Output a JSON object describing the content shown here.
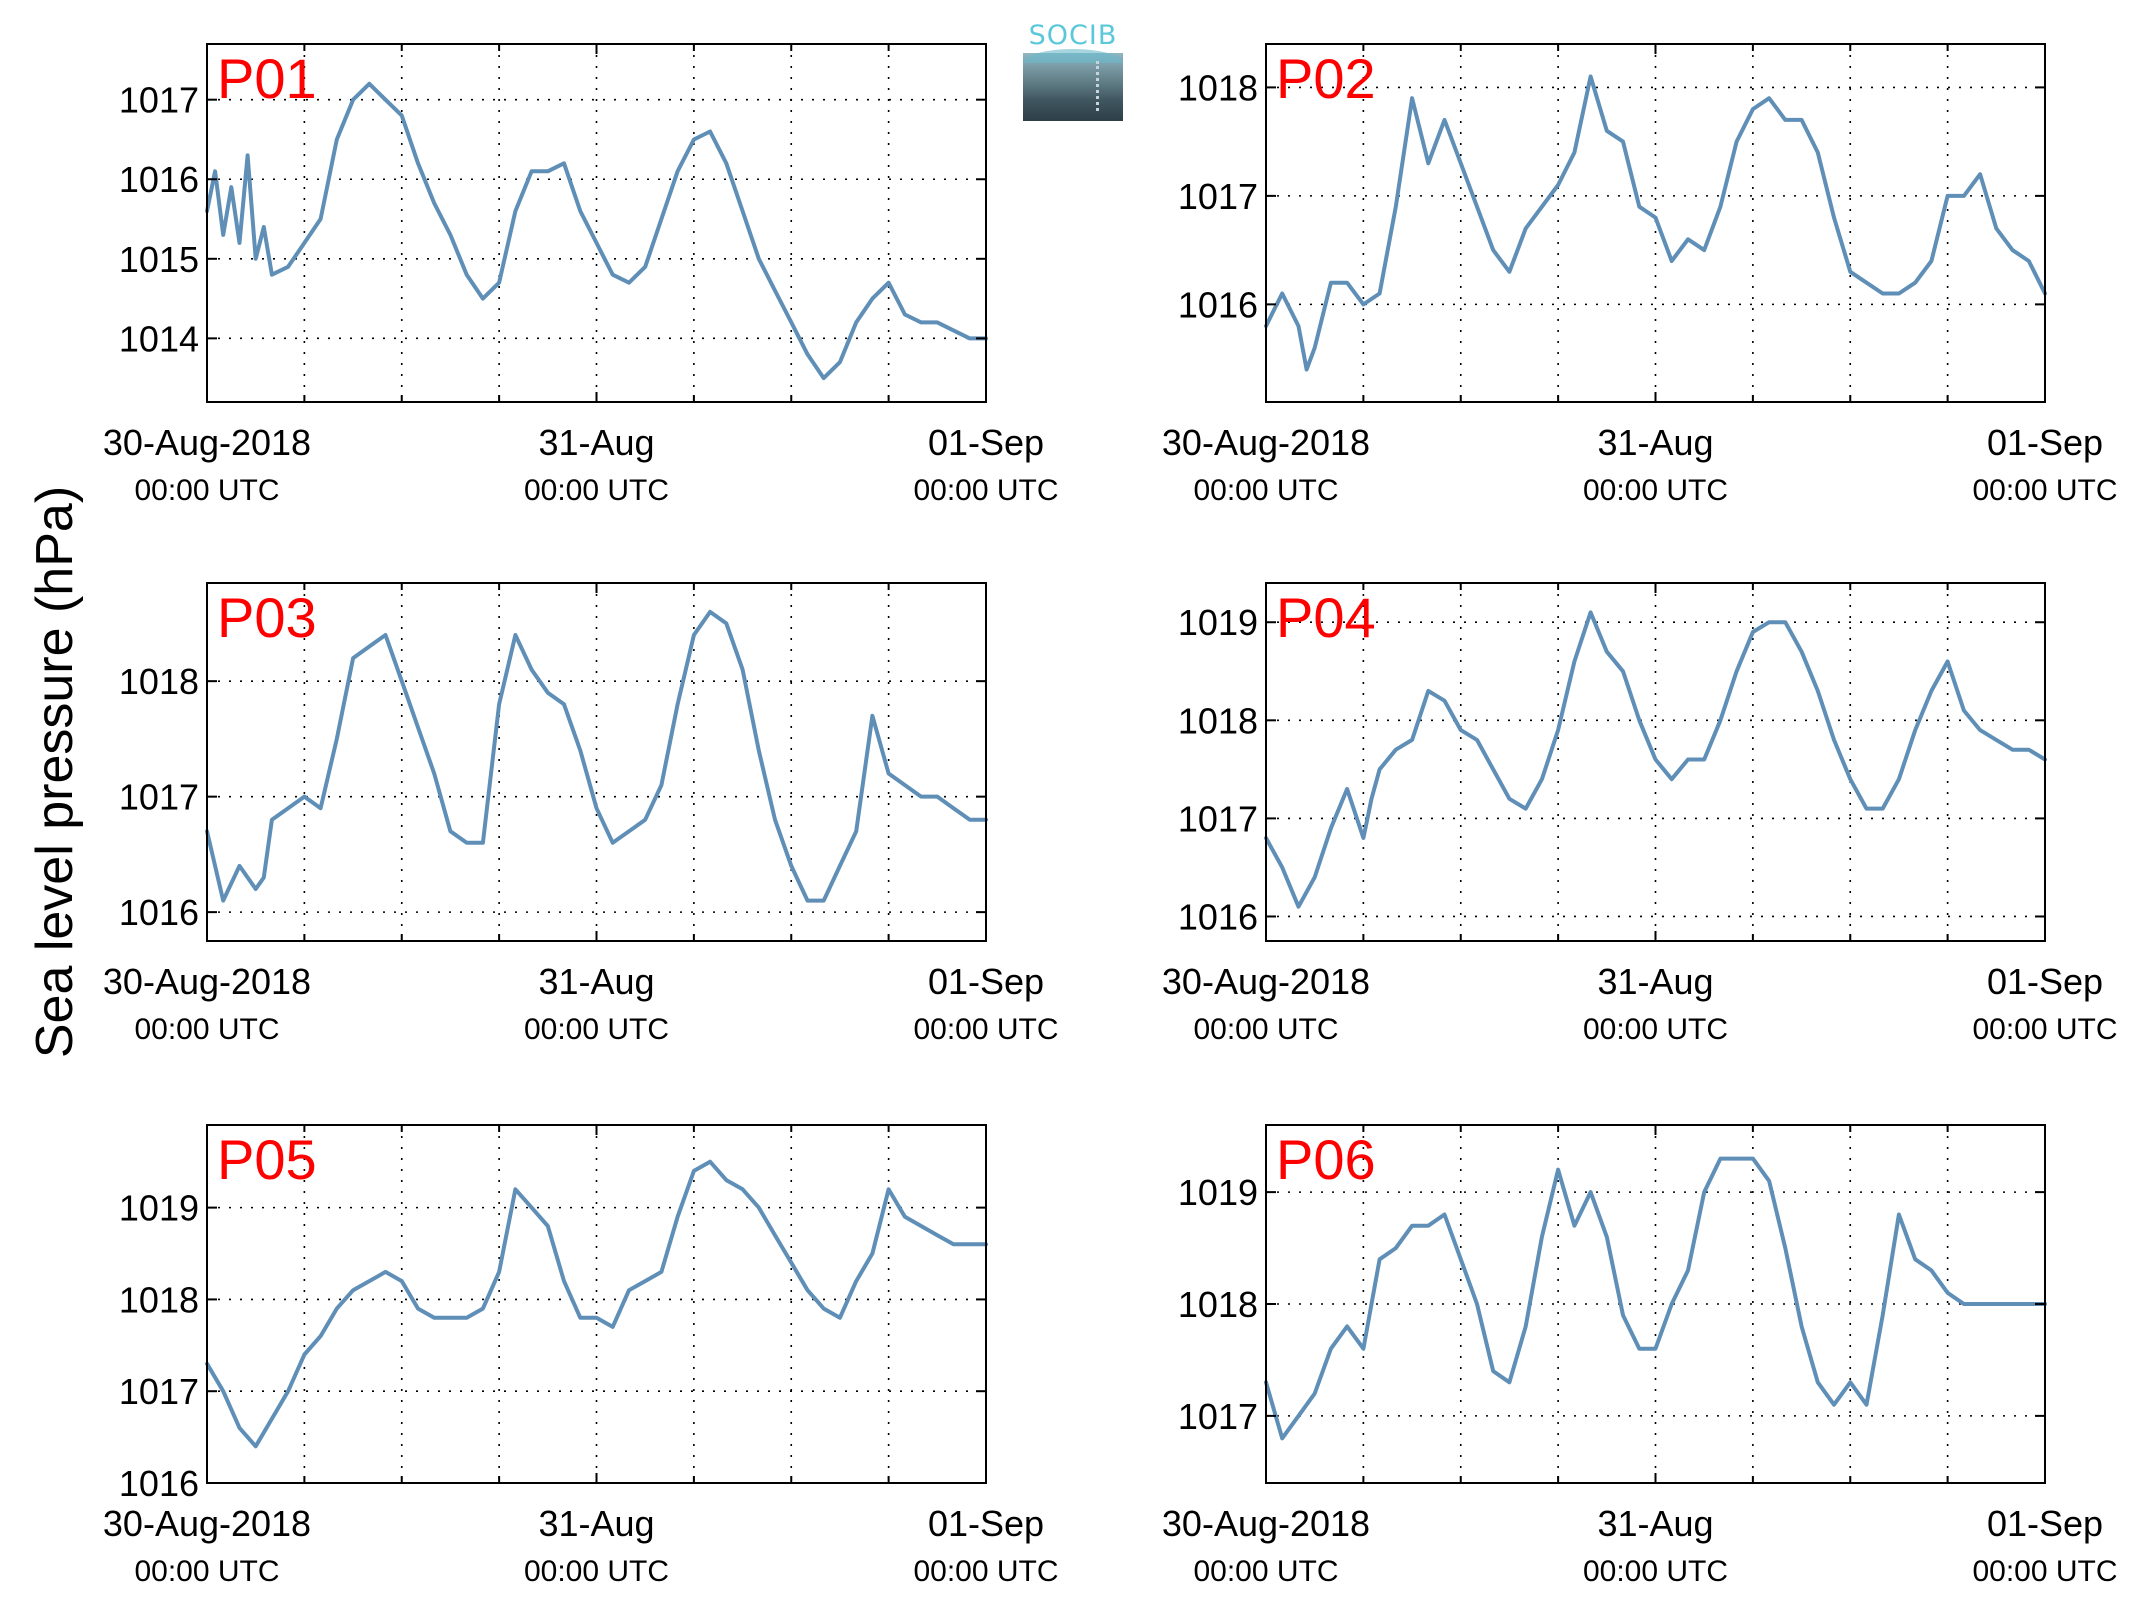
{
  "figure": {
    "ylabel": "Sea level pressure (hPa)",
    "logo_text": "SOCIB"
  },
  "colors": {
    "line": "#5f8fb7",
    "panel_label": "#ff0000",
    "logo_text": "#5bc8da"
  },
  "chart_data": [
    {
      "type": "line",
      "label": "P01",
      "xticks": [
        {
          "line1": "30-Aug-2018",
          "line2": "00:00 UTC"
        },
        {
          "line1": "31-Aug",
          "line2": "00:00 UTC"
        },
        {
          "line1": "01-Sep",
          "line2": "00:00 UTC"
        }
      ],
      "xlim_hours": [
        0,
        48
      ],
      "ylim": [
        1013.2,
        1017.7
      ],
      "yticks": [
        1014,
        1015,
        1016,
        1017
      ],
      "grid": true,
      "x_hours": [
        0,
        0.5,
        1,
        1.5,
        2,
        2.5,
        3,
        3.5,
        4,
        5,
        6,
        7,
        8,
        9,
        10,
        11,
        12,
        13,
        14,
        15,
        16,
        17,
        18,
        19,
        20,
        21,
        22,
        23,
        24,
        25,
        26,
        27,
        28,
        29,
        30,
        31,
        32,
        33,
        34,
        35,
        36,
        37,
        38,
        39,
        40,
        41,
        42,
        43,
        44,
        45,
        46,
        47,
        48
      ],
      "values": [
        1015.6,
        1016.1,
        1015.3,
        1015.9,
        1015.2,
        1016.3,
        1015.0,
        1015.4,
        1014.8,
        1014.9,
        1015.2,
        1015.5,
        1016.5,
        1017.0,
        1017.2,
        1017.0,
        1016.8,
        1016.2,
        1015.7,
        1015.3,
        1014.8,
        1014.5,
        1014.7,
        1015.6,
        1016.1,
        1016.1,
        1016.2,
        1015.6,
        1015.2,
        1014.8,
        1014.7,
        1014.9,
        1015.5,
        1016.1,
        1016.5,
        1016.6,
        1016.2,
        1015.6,
        1015.0,
        1014.6,
        1014.2,
        1013.8,
        1013.5,
        1013.7,
        1014.2,
        1014.5,
        1014.7,
        1014.3,
        1014.2,
        1014.2,
        1014.1,
        1014.0,
        1014.0
      ]
    },
    {
      "type": "line",
      "label": "P02",
      "xticks": [
        {
          "line1": "30-Aug-2018",
          "line2": "00:00 UTC"
        },
        {
          "line1": "31-Aug",
          "line2": "00:00 UTC"
        },
        {
          "line1": "01-Sep",
          "line2": "00:00 UTC"
        }
      ],
      "xlim_hours": [
        0,
        48
      ],
      "ylim": [
        1015.1,
        1018.4
      ],
      "yticks": [
        1016,
        1017,
        1018
      ],
      "grid": true,
      "x_hours": [
        0,
        1,
        2,
        2.5,
        3,
        4,
        5,
        6,
        7,
        8,
        9,
        10,
        11,
        12,
        13,
        14,
        15,
        16,
        17,
        18,
        19,
        20,
        21,
        22,
        23,
        24,
        25,
        26,
        27,
        28,
        29,
        30,
        31,
        32,
        33,
        34,
        35,
        36,
        37,
        38,
        39,
        40,
        41,
        42,
        43,
        44,
        45,
        46,
        47,
        48
      ],
      "values": [
        1015.8,
        1016.1,
        1015.8,
        1015.4,
        1015.6,
        1016.2,
        1016.2,
        1016.0,
        1016.1,
        1016.9,
        1017.9,
        1017.3,
        1017.7,
        1017.3,
        1016.9,
        1016.5,
        1016.3,
        1016.7,
        1016.9,
        1017.1,
        1017.4,
        1018.1,
        1017.6,
        1017.5,
        1016.9,
        1016.8,
        1016.4,
        1016.6,
        1016.5,
        1016.9,
        1017.5,
        1017.8,
        1017.9,
        1017.7,
        1017.7,
        1017.4,
        1016.8,
        1016.3,
        1016.2,
        1016.1,
        1016.1,
        1016.2,
        1016.4,
        1017.0,
        1017.0,
        1017.2,
        1016.7,
        1016.5,
        1016.4,
        1016.1
      ]
    },
    {
      "type": "line",
      "label": "P03",
      "xticks": [
        {
          "line1": "30-Aug-2018",
          "line2": "00:00 UTC"
        },
        {
          "line1": "31-Aug",
          "line2": "00:00 UTC"
        },
        {
          "line1": "01-Sep",
          "line2": "00:00 UTC"
        }
      ],
      "xlim_hours": [
        0,
        48
      ],
      "ylim": [
        1015.75,
        1018.85
      ],
      "yticks": [
        1016,
        1017,
        1018
      ],
      "grid": true,
      "x_hours": [
        0,
        1,
        2,
        3,
        3.5,
        4,
        5,
        6,
        7,
        8,
        9,
        10,
        11,
        12,
        13,
        14,
        15,
        16,
        17,
        18,
        19,
        20,
        21,
        22,
        23,
        24,
        25,
        26,
        27,
        28,
        29,
        30,
        31,
        32,
        33,
        34,
        35,
        36,
        37,
        38,
        39,
        40,
        41,
        42,
        43,
        44,
        45,
        46,
        47,
        48
      ],
      "values": [
        1016.7,
        1016.1,
        1016.4,
        1016.2,
        1016.3,
        1016.8,
        1016.9,
        1017.0,
        1016.9,
        1017.5,
        1018.2,
        1018.3,
        1018.4,
        1018.0,
        1017.6,
        1017.2,
        1016.7,
        1016.6,
        1016.6,
        1017.8,
        1018.4,
        1018.1,
        1017.9,
        1017.8,
        1017.4,
        1016.9,
        1016.6,
        1016.7,
        1016.8,
        1017.1,
        1017.8,
        1018.4,
        1018.6,
        1018.5,
        1018.1,
        1017.4,
        1016.8,
        1016.4,
        1016.1,
        1016.1,
        1016.4,
        1016.7,
        1017.7,
        1017.2,
        1017.1,
        1017.0,
        1017.0,
        1016.9,
        1016.8,
        1016.8
      ]
    },
    {
      "type": "line",
      "label": "P04",
      "xticks": [
        {
          "line1": "30-Aug-2018",
          "line2": "00:00 UTC"
        },
        {
          "line1": "31-Aug",
          "line2": "00:00 UTC"
        },
        {
          "line1": "01-Sep",
          "line2": "00:00 UTC"
        }
      ],
      "xlim_hours": [
        0,
        48
      ],
      "ylim": [
        1015.75,
        1019.4
      ],
      "yticks": [
        1016,
        1017,
        1018,
        1019
      ],
      "grid": true,
      "x_hours": [
        0,
        1,
        2,
        3,
        4,
        5,
        6,
        6.5,
        7,
        8,
        9,
        10,
        11,
        12,
        13,
        14,
        15,
        16,
        17,
        18,
        19,
        20,
        21,
        22,
        23,
        24,
        25,
        26,
        27,
        28,
        29,
        30,
        31,
        32,
        33,
        34,
        35,
        36,
        37,
        38,
        39,
        40,
        41,
        42,
        43,
        44,
        45,
        46,
        47,
        48
      ],
      "values": [
        1016.8,
        1016.5,
        1016.1,
        1016.4,
        1016.9,
        1017.3,
        1016.8,
        1017.2,
        1017.5,
        1017.7,
        1017.8,
        1018.3,
        1018.2,
        1017.9,
        1017.8,
        1017.5,
        1017.2,
        1017.1,
        1017.4,
        1017.9,
        1018.6,
        1019.1,
        1018.7,
        1018.5,
        1018.0,
        1017.6,
        1017.4,
        1017.6,
        1017.6,
        1018.0,
        1018.5,
        1018.9,
        1019.0,
        1019.0,
        1018.7,
        1018.3,
        1017.8,
        1017.4,
        1017.1,
        1017.1,
        1017.4,
        1017.9,
        1018.3,
        1018.6,
        1018.1,
        1017.9,
        1017.8,
        1017.7,
        1017.7,
        1017.6
      ]
    },
    {
      "type": "line",
      "label": "P05",
      "xticks": [
        {
          "line1": "30-Aug-2018",
          "line2": "00:00 UTC"
        },
        {
          "line1": "31-Aug",
          "line2": "00:00 UTC"
        },
        {
          "line1": "01-Sep",
          "line2": "00:00 UTC"
        }
      ],
      "xlim_hours": [
        0,
        48
      ],
      "ylim": [
        1016,
        1019.9
      ],
      "yticks": [
        1016,
        1017,
        1018,
        1019
      ],
      "grid": true,
      "x_hours": [
        0,
        1,
        2,
        3,
        4,
        5,
        6,
        7,
        8,
        9,
        10,
        11,
        12,
        13,
        14,
        15,
        16,
        17,
        18,
        19,
        20,
        21,
        22,
        23,
        24,
        25,
        26,
        27,
        28,
        29,
        30,
        31,
        32,
        33,
        34,
        35,
        36,
        37,
        38,
        39,
        40,
        41,
        42,
        43,
        44,
        45,
        46,
        47,
        48
      ],
      "values": [
        1017.3,
        1017.0,
        1016.6,
        1016.4,
        1016.7,
        1017.0,
        1017.4,
        1017.6,
        1017.9,
        1018.1,
        1018.2,
        1018.3,
        1018.2,
        1017.9,
        1017.8,
        1017.8,
        1017.8,
        1017.9,
        1018.3,
        1019.2,
        1019.0,
        1018.8,
        1018.2,
        1017.8,
        1017.8,
        1017.7,
        1018.1,
        1018.2,
        1018.3,
        1018.9,
        1019.4,
        1019.5,
        1019.3,
        1019.2,
        1019.0,
        1018.7,
        1018.4,
        1018.1,
        1017.9,
        1017.8,
        1018.2,
        1018.5,
        1019.2,
        1018.9,
        1018.8,
        1018.7,
        1018.6,
        1018.6,
        1018.6
      ]
    },
    {
      "type": "line",
      "label": "P06",
      "xticks": [
        {
          "line1": "30-Aug-2018",
          "line2": "00:00 UTC"
        },
        {
          "line1": "31-Aug",
          "line2": "00:00 UTC"
        },
        {
          "line1": "01-Sep",
          "line2": "00:00 UTC"
        }
      ],
      "xlim_hours": [
        0,
        48
      ],
      "ylim": [
        1016.4,
        1019.6
      ],
      "yticks": [
        1017,
        1018,
        1019
      ],
      "grid": true,
      "x_hours": [
        0,
        1,
        2,
        3,
        4,
        5,
        6,
        7,
        8,
        9,
        10,
        11,
        12,
        13,
        14,
        15,
        16,
        17,
        18,
        19,
        20,
        21,
        22,
        23,
        24,
        25,
        26,
        27,
        28,
        29,
        30,
        31,
        32,
        33,
        34,
        35,
        36,
        37,
        38,
        39,
        40,
        41,
        42,
        43,
        44,
        45,
        46,
        47,
        48
      ],
      "values": [
        1017.3,
        1016.8,
        1017.0,
        1017.2,
        1017.6,
        1017.8,
        1017.6,
        1018.4,
        1018.5,
        1018.7,
        1018.7,
        1018.8,
        1018.4,
        1018.0,
        1017.4,
        1017.3,
        1017.8,
        1018.6,
        1019.2,
        1018.7,
        1019.0,
        1018.6,
        1017.9,
        1017.6,
        1017.6,
        1018.0,
        1018.3,
        1019.0,
        1019.3,
        1019.3,
        1019.3,
        1019.1,
        1018.5,
        1017.8,
        1017.3,
        1017.1,
        1017.3,
        1017.1,
        1017.9,
        1018.8,
        1018.4,
        1018.3,
        1018.1,
        1018.0,
        1018.0,
        1018.0,
        1018.0,
        1018.0,
        1018.0
      ]
    }
  ]
}
